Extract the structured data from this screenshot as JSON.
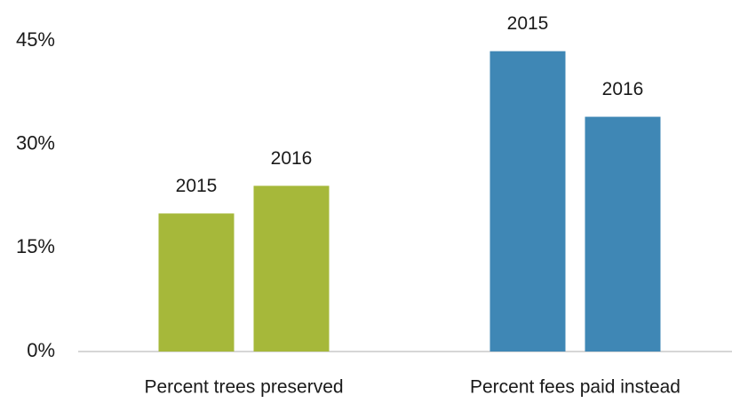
{
  "chart_data": {
    "type": "bar",
    "categories": [
      "Percent trees preserved",
      "Percent fees paid instead"
    ],
    "category_colors": [
      "#a6b83a",
      "#3f87b5"
    ],
    "series": [
      {
        "name": "2015",
        "values": [
          20,
          43.5
        ]
      },
      {
        "name": "2016",
        "values": [
          24,
          34
        ]
      }
    ],
    "ylim": [
      0,
      45
    ],
    "yticks": [
      {
        "value": 0,
        "label": "0%"
      },
      {
        "value": 15,
        "label": "15%"
      },
      {
        "value": 30,
        "label": "30%"
      },
      {
        "value": 45,
        "label": "45%"
      }
    ],
    "grid": false
  }
}
